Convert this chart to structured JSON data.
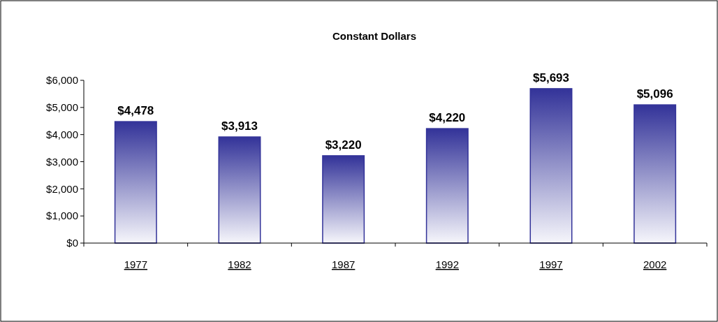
{
  "chart_data": {
    "type": "bar",
    "title": "Constant Dollars",
    "categories": [
      "1977",
      "1982",
      "1987",
      "1992",
      "1997",
      "2002"
    ],
    "values": [
      4478,
      3913,
      3220,
      4220,
      5693,
      5096
    ],
    "value_labels": [
      "$4,478",
      "$3,913",
      "$3,220",
      "$4,220",
      "$5,693",
      "$5,096"
    ],
    "color": "#333399",
    "ylim": [
      0,
      6000
    ],
    "yticks": [
      {
        "value": 0,
        "label": "$0"
      },
      {
        "value": 1000,
        "label": "$1,000"
      },
      {
        "value": 2000,
        "label": "$2,000"
      },
      {
        "value": 3000,
        "label": "$3,000"
      },
      {
        "value": 4000,
        "label": "$4,000"
      },
      {
        "value": 5000,
        "label": "$5,000"
      },
      {
        "value": 6000,
        "label": "$6,000"
      }
    ],
    "grid": false
  }
}
